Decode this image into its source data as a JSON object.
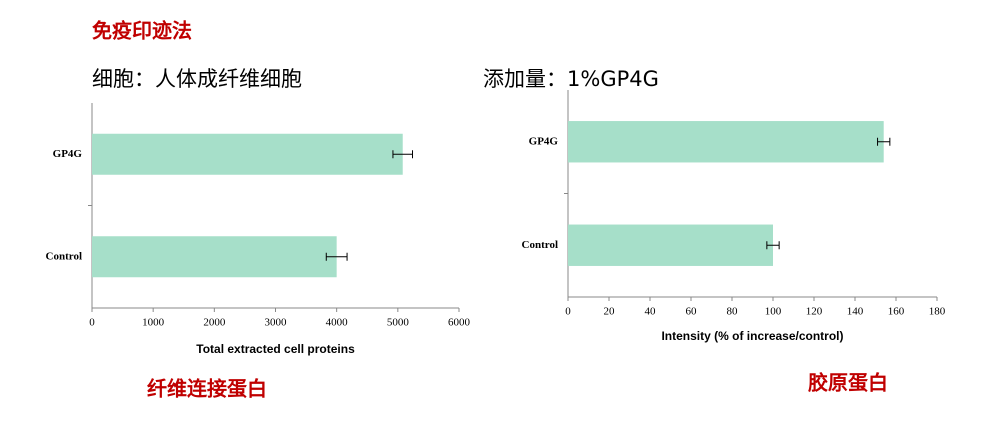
{
  "title": "免疫印迹法",
  "chart_data": [
    {
      "type": "bar",
      "orientation": "horizontal",
      "subtitle": "细胞：人体成纤维细胞",
      "caption": "纤维连接蛋白",
      "xlabel": "Total extracted cell proteins",
      "categories": [
        "GP4G",
        "Control"
      ],
      "values": [
        5080,
        4000
      ],
      "errors": [
        160,
        170
      ],
      "color": "#a6dfc9",
      "xlim": [
        0,
        6000
      ],
      "xticks": [
        0,
        1000,
        2000,
        3000,
        4000,
        5000,
        6000
      ]
    },
    {
      "type": "bar",
      "orientation": "horizontal",
      "subtitle": "添加量：1%GP4G",
      "caption": "胶原蛋白",
      "xlabel": "Intensity (% of increase/control)",
      "categories": [
        "GP4G",
        "Control"
      ],
      "values": [
        154,
        100
      ],
      "errors": [
        3,
        3
      ],
      "color": "#a6dfc9",
      "xlim": [
        0,
        180
      ],
      "xticks": [
        0,
        20,
        40,
        60,
        80,
        100,
        120,
        140,
        160,
        180
      ]
    }
  ]
}
